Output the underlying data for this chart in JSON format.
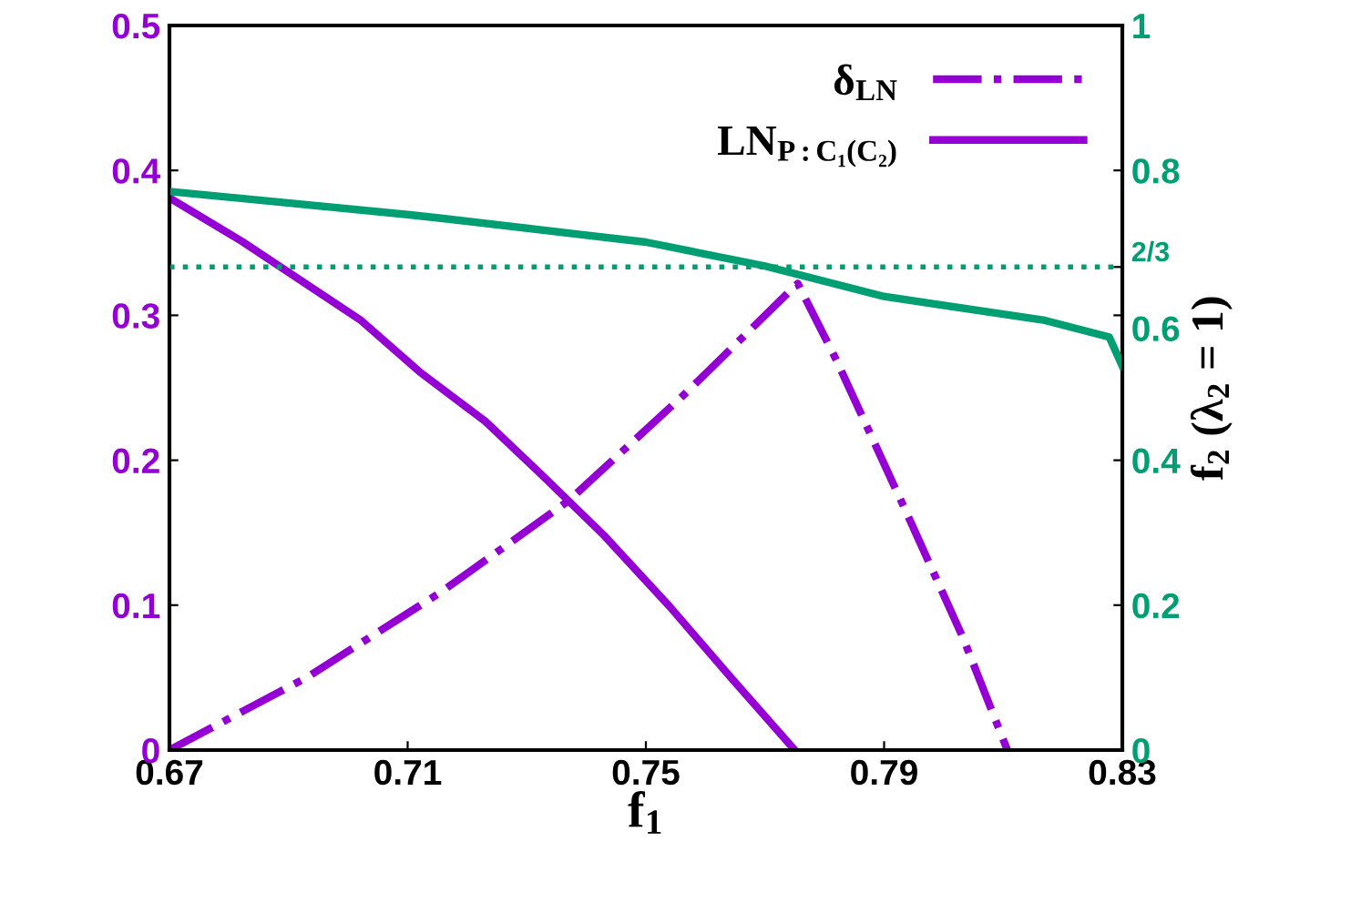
{
  "chart_data": {
    "type": "line",
    "xlabel": "f$_{1}$",
    "y2label": "f$_{2}$ (λ$_{2}$ = 1)",
    "xlim": [
      0.67,
      0.83
    ],
    "xticks": [
      0.67,
      0.71,
      0.75,
      0.79,
      0.83
    ],
    "ylim": [
      0,
      0.5
    ],
    "yticks": [
      0,
      0.1,
      0.2,
      0.3,
      0.4,
      0.5
    ],
    "y2lim": [
      0,
      1
    ],
    "y2ticks": [
      0,
      0.2,
      0.4,
      {
        "value": 0.6,
        "label": "0.6"
      },
      {
        "value": 0.6667,
        "label": "2/3"
      },
      0.8,
      1
    ],
    "grid": false,
    "legend": "top right",
    "ref_lines": [
      {
        "axis": "y2",
        "value": 0.6667,
        "color": "#009e73",
        "line_style": "dotted"
      }
    ],
    "series": [
      {
        "name": "δ$_{LN}$",
        "color": "#9400d3",
        "line_style": "dashdot",
        "x": [
          0.67,
          0.693,
          0.7156,
          0.737,
          0.7566,
          0.7755,
          0.782,
          0.7933,
          0.8033,
          0.8107
        ],
        "values": [
          0,
          0.05,
          0.109,
          0.172,
          0.246,
          0.322,
          0.269,
          0.168,
          0.077,
          0
        ]
      },
      {
        "name": "LN$_{P:C₁(C₂)}$",
        "color": "#9400d3",
        "line_style": "solid",
        "x": [
          0.67,
          0.6822,
          0.702,
          0.712,
          0.723,
          0.733,
          0.743,
          0.754,
          0.7645,
          0.775
        ],
        "values": [
          0.381,
          0.351,
          0.297,
          0.261,
          0.227,
          0.188,
          0.148,
          0.099,
          0.049,
          0
        ]
      },
      {
        "color": "#009e73",
        "axis": "y2",
        "line_style": "solid",
        "x": [
          0.67,
          0.71,
          0.7156,
          0.75,
          0.77,
          0.79,
          0.817,
          0.8278,
          0.83
        ],
        "values": [
          0.771,
          0.739,
          0.734,
          0.701,
          0.668,
          0.626,
          0.593,
          0.57,
          0.53
        ]
      }
    ]
  }
}
